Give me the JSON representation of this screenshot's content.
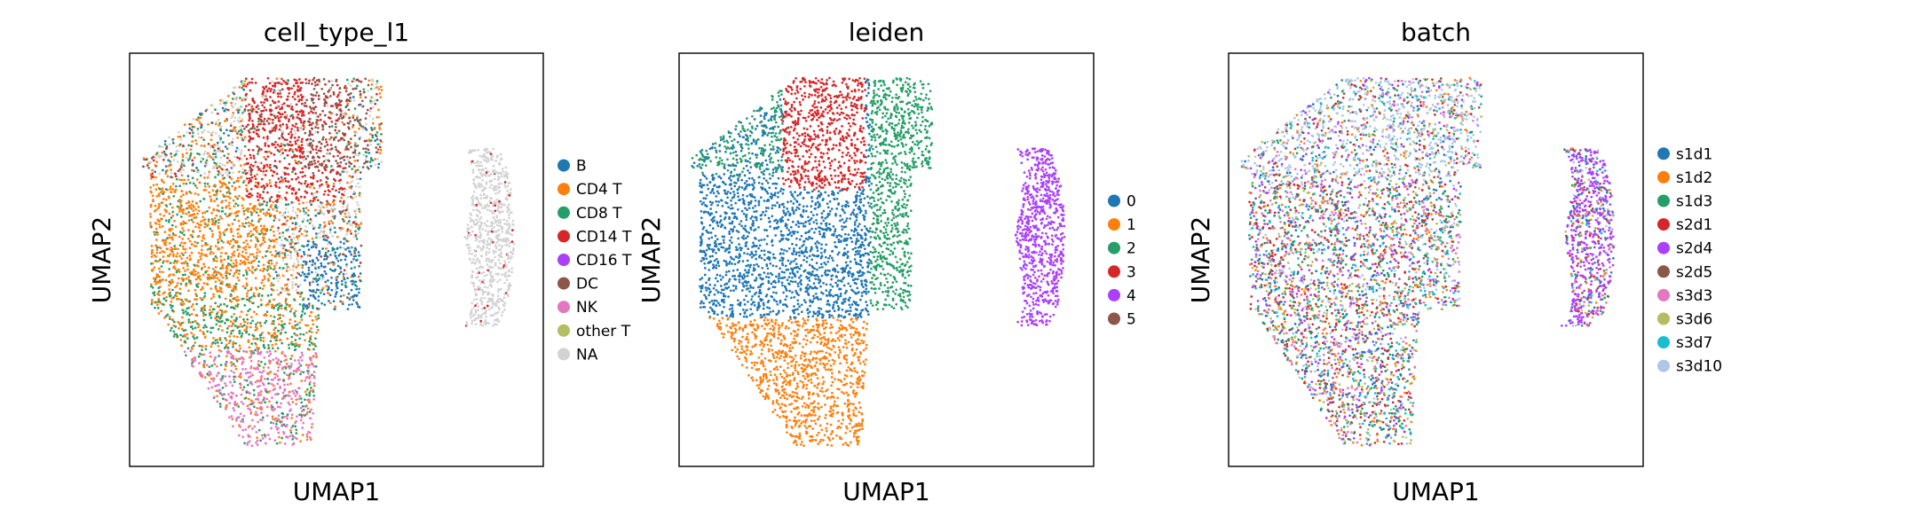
{
  "chart_data": [
    {
      "type": "scatter",
      "title": "cell_type_l1",
      "xlabel": "UMAP1",
      "ylabel": "UMAP2",
      "legend_position": "right",
      "ticks": "none",
      "series": [
        {
          "name": "B",
          "color": "#1f77b4",
          "approx_region": "right lobe of main mass"
        },
        {
          "name": "CD4 T",
          "color": "#ff7f0e",
          "approx_region": "left-center of main mass"
        },
        {
          "name": "CD8 T",
          "color": "#279e68",
          "approx_region": "lower-left of main mass"
        },
        {
          "name": "CD14 T",
          "color": "#d62728",
          "approx_region": "top of main mass"
        },
        {
          "name": "CD16 T",
          "color": "#aa40fc",
          "approx_region": "scattered"
        },
        {
          "name": "DC",
          "color": "#8c564b",
          "approx_region": "top-right of main mass"
        },
        {
          "name": "NK",
          "color": "#e377c2",
          "approx_region": "bottom tail of main mass"
        },
        {
          "name": "other T",
          "color": "#b5bd61",
          "approx_region": "scattered"
        },
        {
          "name": "NA",
          "color": "#d3d3d3",
          "approx_region": "separate crescent cluster on right"
        }
      ]
    },
    {
      "type": "scatter",
      "title": "leiden",
      "xlabel": "UMAP1",
      "ylabel": "UMAP2",
      "legend_position": "right",
      "ticks": "none",
      "series": [
        {
          "name": "0",
          "color": "#1f77b4",
          "approx_region": "center/left of main mass"
        },
        {
          "name": "1",
          "color": "#ff7f0e",
          "approx_region": "bottom tail of main mass"
        },
        {
          "name": "2",
          "color": "#279e68",
          "approx_region": "upper-left edge and right lobe"
        },
        {
          "name": "3",
          "color": "#d62728",
          "approx_region": "top of main mass"
        },
        {
          "name": "4",
          "color": "#aa40fc",
          "approx_region": "separate crescent cluster on right"
        },
        {
          "name": "5",
          "color": "#8c564b",
          "approx_region": "tiny"
        }
      ]
    },
    {
      "type": "scatter",
      "title": "batch",
      "xlabel": "UMAP1",
      "ylabel": "UMAP2",
      "legend_position": "right",
      "ticks": "none",
      "series": [
        {
          "name": "s1d1",
          "color": "#1f77b4"
        },
        {
          "name": "s1d2",
          "color": "#ff7f0e"
        },
        {
          "name": "s1d3",
          "color": "#279e68"
        },
        {
          "name": "s2d1",
          "color": "#d62728"
        },
        {
          "name": "s2d4",
          "color": "#aa40fc"
        },
        {
          "name": "s2d5",
          "color": "#8c564b"
        },
        {
          "name": "s3d3",
          "color": "#e377c2"
        },
        {
          "name": "s3d6",
          "color": "#b5bd61"
        },
        {
          "name": "s3d7",
          "color": "#17becf"
        },
        {
          "name": "s3d10",
          "color": "#aec7e8"
        }
      ]
    }
  ]
}
